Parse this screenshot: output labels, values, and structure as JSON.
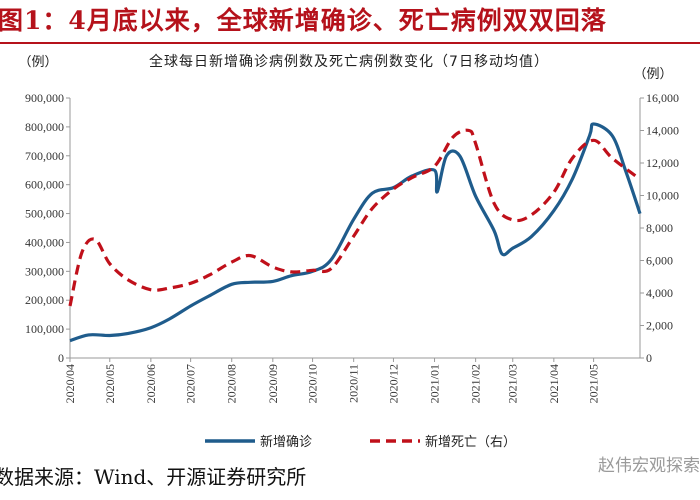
{
  "figure_title": "图1：4月底以来，全球新增确诊、死亡病例双双回落",
  "source": "数据来源：Wind、开源证券研究所",
  "watermark": "赵伟宏观探索",
  "chart_data": {
    "type": "line",
    "title": "全球每日新增确诊病例数及死亡病例数变化（7日移动均值）",
    "ylabel_left": "（例）",
    "ylabel_right": "（例）",
    "ylim_left": [
      0,
      900000
    ],
    "ylim_right": [
      0,
      16000
    ],
    "yticks_left": [
      "0",
      "100,000",
      "200,000",
      "300,000",
      "400,000",
      "500,000",
      "600,000",
      "700,000",
      "800,000",
      "900,000"
    ],
    "yticks_right": [
      "0",
      "2,000",
      "4,000",
      "6,000",
      "8,000",
      "10,000",
      "12,000",
      "14,000",
      "16,000"
    ],
    "x_start": "2020-04-01",
    "x_end": "2021-06-05",
    "xticks": [
      "2020/04",
      "2020/05",
      "2020/06",
      "2020/07",
      "2020/08",
      "2020/09",
      "2020/10",
      "2020/11",
      "2020/12",
      "2021/01",
      "2021/02",
      "2021/03",
      "2021/04",
      "2021/05"
    ],
    "legend_position": "bottom",
    "grid": false,
    "series": [
      {
        "name": "新增确诊",
        "axis": "left",
        "color": "#1f5c8c",
        "style": "solid",
        "x": [
          "2020-04-01",
          "2020-04-15",
          "2020-05-01",
          "2020-05-15",
          "2020-06-01",
          "2020-06-15",
          "2020-07-01",
          "2020-07-15",
          "2020-08-01",
          "2020-08-15",
          "2020-09-01",
          "2020-09-15",
          "2020-10-01",
          "2020-10-15",
          "2020-11-01",
          "2020-11-15",
          "2020-12-01",
          "2020-12-15",
          "2021-01-01",
          "2021-01-03",
          "2021-01-10",
          "2021-01-20",
          "2021-02-01",
          "2021-02-15",
          "2021-02-21",
          "2021-03-01",
          "2021-03-15",
          "2021-04-01",
          "2021-04-15",
          "2021-04-28",
          "2021-05-01",
          "2021-05-15",
          "2021-05-25",
          "2021-06-05"
        ],
        "y": [
          60000,
          80000,
          78000,
          85000,
          105000,
          135000,
          180000,
          215000,
          255000,
          262000,
          265000,
          285000,
          300000,
          340000,
          480000,
          570000,
          590000,
          630000,
          650000,
          575000,
          700000,
          700000,
          560000,
          440000,
          360000,
          380000,
          420000,
          510000,
          620000,
          770000,
          810000,
          770000,
          650000,
          500000
        ]
      },
      {
        "name": "新增死亡（右）",
        "axis": "right",
        "color": "#c0101a",
        "style": "dashed",
        "x": [
          "2020-04-01",
          "2020-04-10",
          "2020-04-20",
          "2020-05-01",
          "2020-05-15",
          "2020-06-01",
          "2020-06-15",
          "2020-07-01",
          "2020-07-15",
          "2020-08-01",
          "2020-08-15",
          "2020-09-01",
          "2020-09-15",
          "2020-10-01",
          "2020-10-15",
          "2020-11-01",
          "2020-11-15",
          "2020-12-01",
          "2020-12-15",
          "2021-01-01",
          "2021-01-15",
          "2021-01-27",
          "2021-02-01",
          "2021-02-15",
          "2021-03-01",
          "2021-03-15",
          "2021-04-01",
          "2021-04-15",
          "2021-05-01",
          "2021-05-15",
          "2021-06-05"
        ],
        "y": [
          3200,
          6500,
          7300,
          5800,
          4800,
          4200,
          4300,
          4600,
          5100,
          5900,
          6300,
          5600,
          5300,
          5400,
          5500,
          7500,
          9200,
          10400,
          11100,
          11800,
          13600,
          14000,
          13200,
          9500,
          8500,
          8800,
          10200,
          12300,
          13400,
          12300,
          11000
        ]
      }
    ]
  }
}
